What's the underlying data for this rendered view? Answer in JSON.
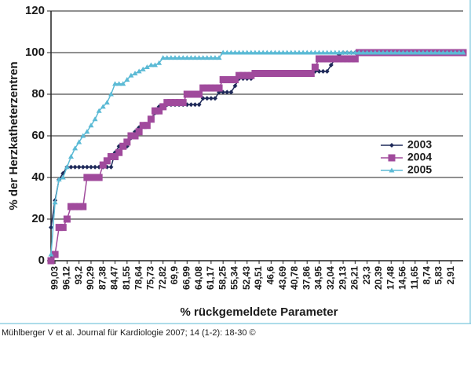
{
  "chart_data": {
    "type": "line",
    "xlabel": "% rückgemeldete Parameter",
    "ylabel": "% der Herzkatheterzentren",
    "caption": "Mühlberger V et al. Journal für Kardiologie 2007; 14 (1-2): 18-30 ©",
    "categories": [
      null,
      "99,03",
      null,
      null,
      "96,12",
      null,
      null,
      "93,2",
      null,
      null,
      "90,29",
      null,
      null,
      "87,38",
      null,
      null,
      "84,47",
      null,
      null,
      "81,55",
      null,
      null,
      "78,64",
      null,
      null,
      "75,73",
      null,
      null,
      "72,82",
      null,
      null,
      "69,9",
      null,
      null,
      "66,99",
      null,
      null,
      "64,08",
      null,
      null,
      "61,17",
      null,
      null,
      "58,25",
      null,
      null,
      "55,34",
      null,
      null,
      "52,43",
      null,
      null,
      "49,51",
      null,
      null,
      "46,6",
      null,
      null,
      "43,69",
      null,
      null,
      "40,78",
      null,
      null,
      "37,86",
      null,
      null,
      "34,95",
      null,
      null,
      "32,04",
      null,
      null,
      "29,13",
      null,
      null,
      "26,21",
      null,
      null,
      "23,3",
      null,
      null,
      "20,39",
      null,
      null,
      "17,48",
      null,
      null,
      "14,56",
      null,
      null,
      "11,65",
      null,
      null,
      "8,74",
      null,
      null,
      "5,83",
      null,
      null,
      "2,91",
      null,
      null,
      null
    ],
    "series": [
      {
        "name": "2003",
        "color": "#1f2a5a",
        "marker": "diamond",
        "values": [
          16,
          29,
          39,
          42,
          45,
          45,
          45,
          45,
          45,
          45,
          45,
          45,
          45,
          45,
          45,
          45,
          52,
          55,
          55,
          55,
          59,
          62,
          64,
          65,
          65,
          68,
          71,
          74,
          74,
          75,
          75,
          75,
          75,
          75,
          75,
          75,
          75,
          75,
          78,
          78,
          78,
          78,
          81,
          81,
          81,
          81,
          84,
          87.5,
          87.5,
          87.5,
          87.5,
          90,
          90,
          90,
          90,
          90,
          90,
          90,
          90,
          90,
          90,
          90,
          90,
          90,
          90,
          90,
          91,
          91,
          91,
          91,
          94,
          97,
          99,
          100,
          100,
          100,
          100,
          100,
          100,
          100,
          100,
          100,
          100,
          100,
          100,
          100,
          100,
          100,
          100,
          100,
          100,
          100,
          100,
          100,
          100,
          100,
          100,
          100,
          100,
          100,
          100,
          100,
          100,
          100
        ]
      },
      {
        "name": "2004",
        "color": "#a04a9c",
        "marker": "square",
        "values": [
          0,
          3,
          16,
          16,
          20,
          26,
          26,
          26,
          26,
          40,
          40,
          40,
          40,
          46,
          48,
          50,
          50,
          52,
          55,
          57,
          60,
          60,
          62,
          65,
          65,
          68,
          72,
          72,
          74,
          76,
          76,
          76,
          76,
          76,
          80,
          80,
          80,
          80,
          83,
          83,
          83,
          83,
          83,
          87,
          87,
          87,
          87,
          89,
          89,
          89,
          89,
          90,
          90,
          90,
          90,
          90,
          90,
          90,
          90,
          90,
          90,
          90,
          90,
          90,
          90,
          90,
          93,
          97,
          97,
          97,
          97,
          97,
          97,
          97,
          97,
          97,
          97,
          100,
          100,
          100,
          100,
          100,
          100,
          100,
          100,
          100,
          100,
          100,
          100,
          100,
          100,
          100,
          100,
          100,
          100,
          100,
          100,
          100,
          100,
          100,
          100,
          100,
          100,
          100
        ]
      },
      {
        "name": "2005",
        "color": "#5bbad5",
        "marker": "triangle",
        "values": [
          3,
          28,
          39,
          40,
          45,
          50,
          54,
          57,
          60,
          62,
          65,
          68,
          72,
          74,
          76,
          80,
          85,
          85,
          85,
          87,
          89,
          90,
          91,
          92,
          93,
          94,
          94,
          95,
          97.5,
          97.5,
          97.5,
          97.5,
          97.5,
          97.5,
          97.5,
          97.5,
          97.5,
          97.5,
          97.5,
          97.5,
          97.5,
          97.5,
          97.5,
          100,
          100,
          100,
          100,
          100,
          100,
          100,
          100,
          100,
          100,
          100,
          100,
          100,
          100,
          100,
          100,
          100,
          100,
          100,
          100,
          100,
          100,
          100,
          100,
          100,
          100,
          100,
          100,
          100,
          100,
          100,
          100,
          100,
          100,
          100,
          100,
          100,
          100,
          100,
          100,
          100,
          100,
          100,
          100,
          100,
          100,
          100,
          100,
          100,
          100,
          100,
          100,
          100,
          100,
          100,
          100,
          100,
          100,
          100,
          100,
          100
        ]
      }
    ],
    "ylim": [
      0,
      120
    ],
    "yticks": [
      0,
      20,
      40,
      60,
      80,
      100,
      120
    ],
    "grid": true,
    "legend": "right"
  }
}
